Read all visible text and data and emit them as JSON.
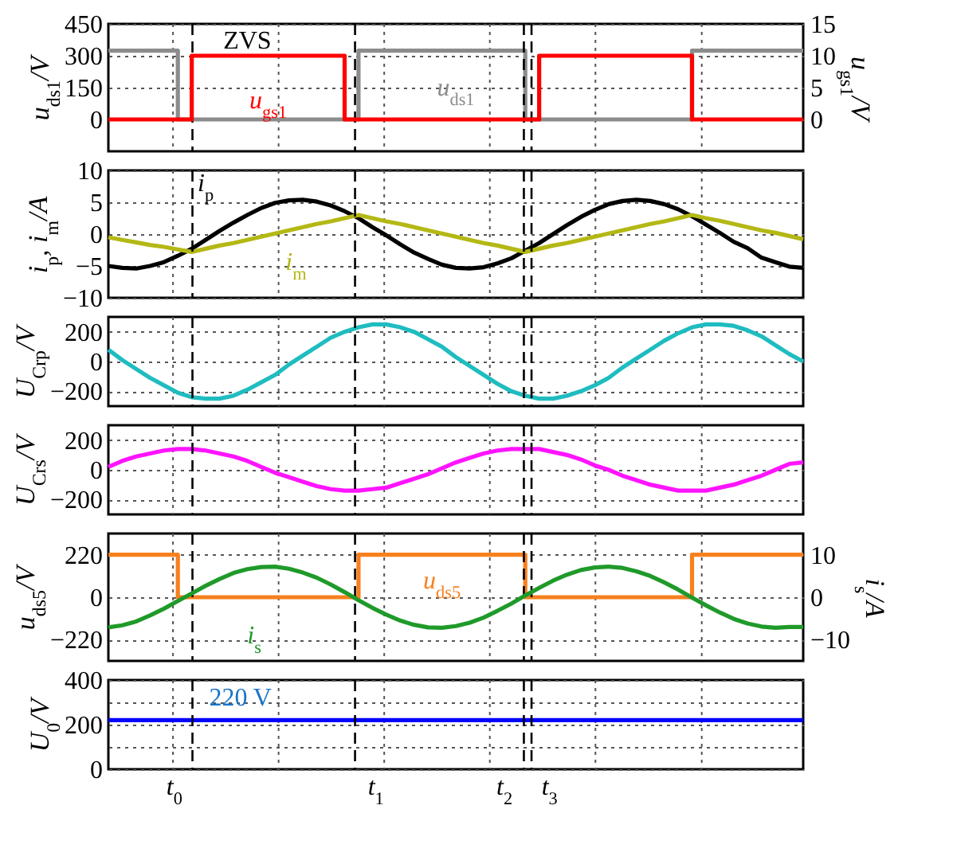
{
  "chart_data": [
    {
      "type": "step",
      "ylabel": "u$_{ds1}$/V",
      "y2label": "u$_{gs1}$/V",
      "categories": [
        null,
        null,
        null,
        null,
        null,
        null,
        null,
        null,
        null,
        null,
        null,
        null,
        null,
        null,
        null,
        null,
        null,
        null,
        null,
        null,
        null,
        null,
        null,
        null,
        null,
        null,
        null,
        null,
        null,
        null,
        null,
        null,
        null,
        null,
        null,
        null,
        null,
        null,
        null,
        null,
        null,
        null,
        null,
        null,
        null,
        null,
        null,
        null,
        null,
        null,
        null
      ],
      "ylim": [
        -150,
        450
      ],
      "yticks": [
        0,
        150,
        300,
        450
      ],
      "y2lim": [
        -5,
        15
      ],
      "y2ticks": [
        0,
        5,
        10,
        15
      ],
      "grid": true,
      "tick_labels": "y",
      "series": [
        {
          "name": "u$_{ds1}$",
          "color": "#8c8c8c",
          "values": [
            324,
            324,
            324,
            324,
            324,
            0,
            0,
            0,
            0,
            0,
            0,
            0,
            0,
            0,
            0,
            0,
            0,
            0,
            324,
            324,
            324,
            324,
            324,
            324,
            324,
            324,
            324,
            324,
            324,
            324,
            0,
            0,
            0,
            0,
            0,
            0,
            0,
            0,
            0,
            0,
            0,
            0,
            324,
            324,
            324,
            324,
            324,
            324,
            324,
            324,
            324
          ]
        },
        {
          "name": "u$_{gs1}$",
          "color": "#ff0000",
          "axis": "y2",
          "values": [
            0,
            0,
            0,
            0,
            0,
            0,
            10,
            10,
            10,
            10,
            10,
            10,
            10,
            10,
            10,
            10,
            10,
            0,
            0,
            0,
            0,
            0,
            0,
            0,
            0,
            0,
            0,
            0,
            0,
            0,
            0,
            10,
            10,
            10,
            10,
            10,
            10,
            10,
            10,
            10,
            10,
            10,
            0,
            0,
            0,
            0,
            0,
            0,
            0,
            0,
            0
          ]
        }
      ],
      "annotations": [
        "ZVS"
      ]
    },
    {
      "type": "line",
      "ylabel": "i$_{p}$, i$_{m}$/A",
      "categories": [
        null,
        null,
        null,
        null,
        null,
        null,
        null,
        null,
        null,
        null,
        null,
        null,
        null,
        null,
        null,
        null,
        null,
        null,
        null,
        null,
        null,
        null,
        null,
        null,
        null,
        null,
        null,
        null,
        null,
        null,
        null,
        null,
        null,
        null,
        null,
        null,
        null,
        null,
        null,
        null,
        null,
        null,
        null,
        null,
        null,
        null,
        null,
        null,
        null,
        null,
        null
      ],
      "ylim": [
        -10,
        10
      ],
      "yticks": [
        -10,
        -5,
        0,
        5,
        10
      ],
      "grid": true,
      "tick_labels": "y",
      "series": [
        {
          "name": "i$_{p}$",
          "color": "#000000",
          "values": [
            -5.0,
            -5.3,
            -5.4,
            -5.0,
            -4.4,
            -3.4,
            -2.3,
            -0.9,
            0.5,
            1.8,
            3.0,
            4.1,
            4.9,
            5.3,
            5.4,
            5.1,
            4.5,
            3.6,
            2.5,
            1.1,
            -0.2,
            -1.6,
            -2.9,
            -3.9,
            -4.8,
            -5.3,
            -5.4,
            -5.2,
            -4.6,
            -3.8,
            -2.6,
            -1.4,
            0.0,
            1.4,
            2.7,
            3.8,
            4.7,
            5.2,
            5.4,
            5.2,
            4.7,
            3.9,
            2.8,
            1.5,
            0.2,
            -1.2,
            -2.2,
            -3.7,
            -4.4,
            -5.1,
            -5.3
          ]
        },
        {
          "name": "i$_{m}$",
          "color": "#b4b814",
          "values": [
            -0.5,
            -0.9,
            -1.3,
            -1.7,
            -2.0,
            -2.4,
            -2.8,
            -2.3,
            -1.8,
            -1.4,
            -0.9,
            -0.4,
            0.1,
            0.6,
            1.1,
            1.6,
            2.0,
            2.5,
            3.0,
            2.5,
            2.0,
            1.6,
            1.1,
            0.6,
            0.1,
            -0.4,
            -0.9,
            -1.4,
            -1.8,
            -2.3,
            -2.8,
            -2.3,
            -1.8,
            -1.4,
            -0.9,
            -0.4,
            0.1,
            0.6,
            1.1,
            1.6,
            2.0,
            2.5,
            3.0,
            2.5,
            2.1,
            1.6,
            1.1,
            0.6,
            0.2,
            -0.3,
            -0.8
          ]
        }
      ]
    },
    {
      "type": "line",
      "ylabel": "U$_{Crp}$/V",
      "categories": [
        null,
        null,
        null,
        null,
        null,
        null,
        null,
        null,
        null,
        null,
        null,
        null,
        null,
        null,
        null,
        null,
        null,
        null,
        null,
        null,
        null,
        null,
        null,
        null,
        null,
        null,
        null,
        null,
        null,
        null,
        null,
        null,
        null,
        null,
        null,
        null,
        null,
        null,
        null,
        null,
        null,
        null,
        null,
        null,
        null,
        null,
        null,
        null,
        null,
        null,
        null
      ],
      "ylim": [
        -300,
        300
      ],
      "yticks": [
        -200,
        0,
        200
      ],
      "grid": true,
      "tick_labels": "y",
      "series": [
        {
          "color": "#1fbcc0",
          "values": [
            80,
            10,
            -50,
            -110,
            -160,
            -210,
            -240,
            -250,
            -250,
            -230,
            -190,
            -140,
            -90,
            -20,
            40,
            100,
            160,
            200,
            230,
            250,
            250,
            230,
            200,
            150,
            100,
            30,
            -30,
            -90,
            -150,
            -200,
            -230,
            -250,
            -250,
            -230,
            -200,
            -160,
            -110,
            -40,
            20,
            80,
            140,
            190,
            230,
            250,
            250,
            240,
            210,
            170,
            110,
            50,
            0
          ]
        }
      ]
    },
    {
      "type": "line",
      "ylabel": "U$_{Crs}$/V",
      "categories": [
        null,
        null,
        null,
        null,
        null,
        null,
        null,
        null,
        null,
        null,
        null,
        null,
        null,
        null,
        null,
        null,
        null,
        null,
        null,
        null,
        null,
        null,
        null,
        null,
        null,
        null,
        null,
        null,
        null,
        null,
        null,
        null,
        null,
        null,
        null,
        null,
        null,
        null,
        null,
        null,
        null,
        null,
        null,
        null,
        null,
        null,
        null,
        null,
        null,
        null,
        null
      ],
      "ylim": [
        -300,
        300
      ],
      "yticks": [
        -200,
        0,
        200
      ],
      "grid": true,
      "tick_labels": "y",
      "series": [
        {
          "color": "#ff14ff",
          "values": [
            20,
            60,
            90,
            110,
            130,
            140,
            140,
            130,
            110,
            90,
            60,
            20,
            -20,
            -50,
            -80,
            -110,
            -130,
            -140,
            -140,
            -130,
            -120,
            -90,
            -60,
            -30,
            10,
            50,
            80,
            110,
            130,
            140,
            140,
            140,
            120,
            100,
            70,
            30,
            0,
            -40,
            -70,
            -100,
            -120,
            -140,
            -140,
            -140,
            -120,
            -100,
            -70,
            -40,
            0,
            40,
            50
          ]
        }
      ]
    },
    {
      "type": "line",
      "ylabel": "u$_{ds5}$/V",
      "y2label": "i$_{s}$/A",
      "categories": [
        null,
        null,
        null,
        null,
        null,
        null,
        null,
        null,
        null,
        null,
        null,
        null,
        null,
        null,
        null,
        null,
        null,
        null,
        null,
        null,
        null,
        null,
        null,
        null,
        null,
        null,
        null,
        null,
        null,
        null,
        null,
        null,
        null,
        null,
        null,
        null,
        null,
        null,
        null,
        null,
        null,
        null,
        null,
        null,
        null,
        null,
        null,
        null,
        null,
        null,
        null
      ],
      "ylim": [
        -330,
        330
      ],
      "yticks": [
        -220,
        0,
        220
      ],
      "y2lim": [
        -15,
        15
      ],
      "y2ticks": [
        -10,
        0,
        10
      ],
      "grid": true,
      "tick_labels": "y",
      "series": [
        {
          "name": "u$_{ds5}$",
          "type": "step",
          "color": "#f7801e",
          "values": [
            220,
            220,
            220,
            220,
            220,
            0,
            0,
            0,
            0,
            0,
            0,
            0,
            0,
            0,
            0,
            0,
            0,
            0,
            220,
            220,
            220,
            220,
            220,
            220,
            220,
            220,
            220,
            220,
            220,
            220,
            0,
            0,
            0,
            0,
            0,
            0,
            0,
            0,
            0,
            0,
            0,
            0,
            220,
            220,
            220,
            220,
            220,
            220,
            220,
            220,
            220
          ]
        },
        {
          "name": "i$_{s}$",
          "color": "#1f9a2a",
          "axis": "y2",
          "values": [
            -7.1,
            -6.6,
            -5.7,
            -4.3,
            -2.7,
            -0.9,
            0.9,
            2.7,
            4.3,
            5.7,
            6.6,
            7.1,
            7.2,
            6.7,
            5.8,
            4.6,
            3.0,
            1.2,
            -0.7,
            -2.5,
            -4.1,
            -5.5,
            -6.5,
            -7.1,
            -7.2,
            -6.8,
            -6.0,
            -4.8,
            -3.2,
            -1.5,
            0.4,
            2.2,
            3.9,
            5.3,
            6.4,
            7.0,
            7.2,
            6.9,
            6.1,
            5.0,
            3.5,
            1.8,
            -0.1,
            -1.9,
            -3.6,
            -5.1,
            -6.2,
            -6.9,
            -7.2,
            -7.0,
            -7.0
          ]
        }
      ]
    },
    {
      "type": "line",
      "ylabel": "U$_{0}$/V",
      "categories": [
        null,
        null,
        null,
        null,
        null,
        null,
        null,
        null,
        null,
        null,
        null,
        null,
        null,
        null,
        null,
        null,
        null,
        null,
        null,
        null,
        null,
        null,
        null,
        null,
        null,
        null,
        null,
        null,
        null,
        null,
        null,
        null,
        null,
        null,
        null,
        null,
        null,
        null,
        null,
        null,
        null,
        null,
        null,
        null,
        null,
        null,
        null,
        null,
        null,
        null,
        null
      ],
      "ylim": [
        0,
        400
      ],
      "yticks": [
        0,
        {
          "value": 100,
          "label": null
        },
        200,
        {
          "value": 300,
          "label": null
        },
        400
      ],
      "grid": true,
      "tick_labels": "y",
      "series": [
        {
          "color": "#0000ff",
          "values": [
            220,
            220,
            220,
            220,
            220,
            220,
            220,
            220,
            220,
            220,
            220,
            220,
            220,
            220,
            220,
            220,
            220,
            220,
            220,
            220,
            220,
            220,
            220,
            220,
            220,
            220,
            220,
            220,
            220,
            220,
            220,
            220,
            220,
            220,
            220,
            220,
            220,
            220,
            220,
            220,
            220,
            220,
            220,
            220,
            220,
            220,
            220,
            220,
            220,
            220,
            220
          ]
        }
      ],
      "annotations": [
        "220 V",
        "t$_{0}$",
        "t$_{1}$",
        "t$_{2}$",
        "t$_{3}$"
      ]
    }
  ]
}
